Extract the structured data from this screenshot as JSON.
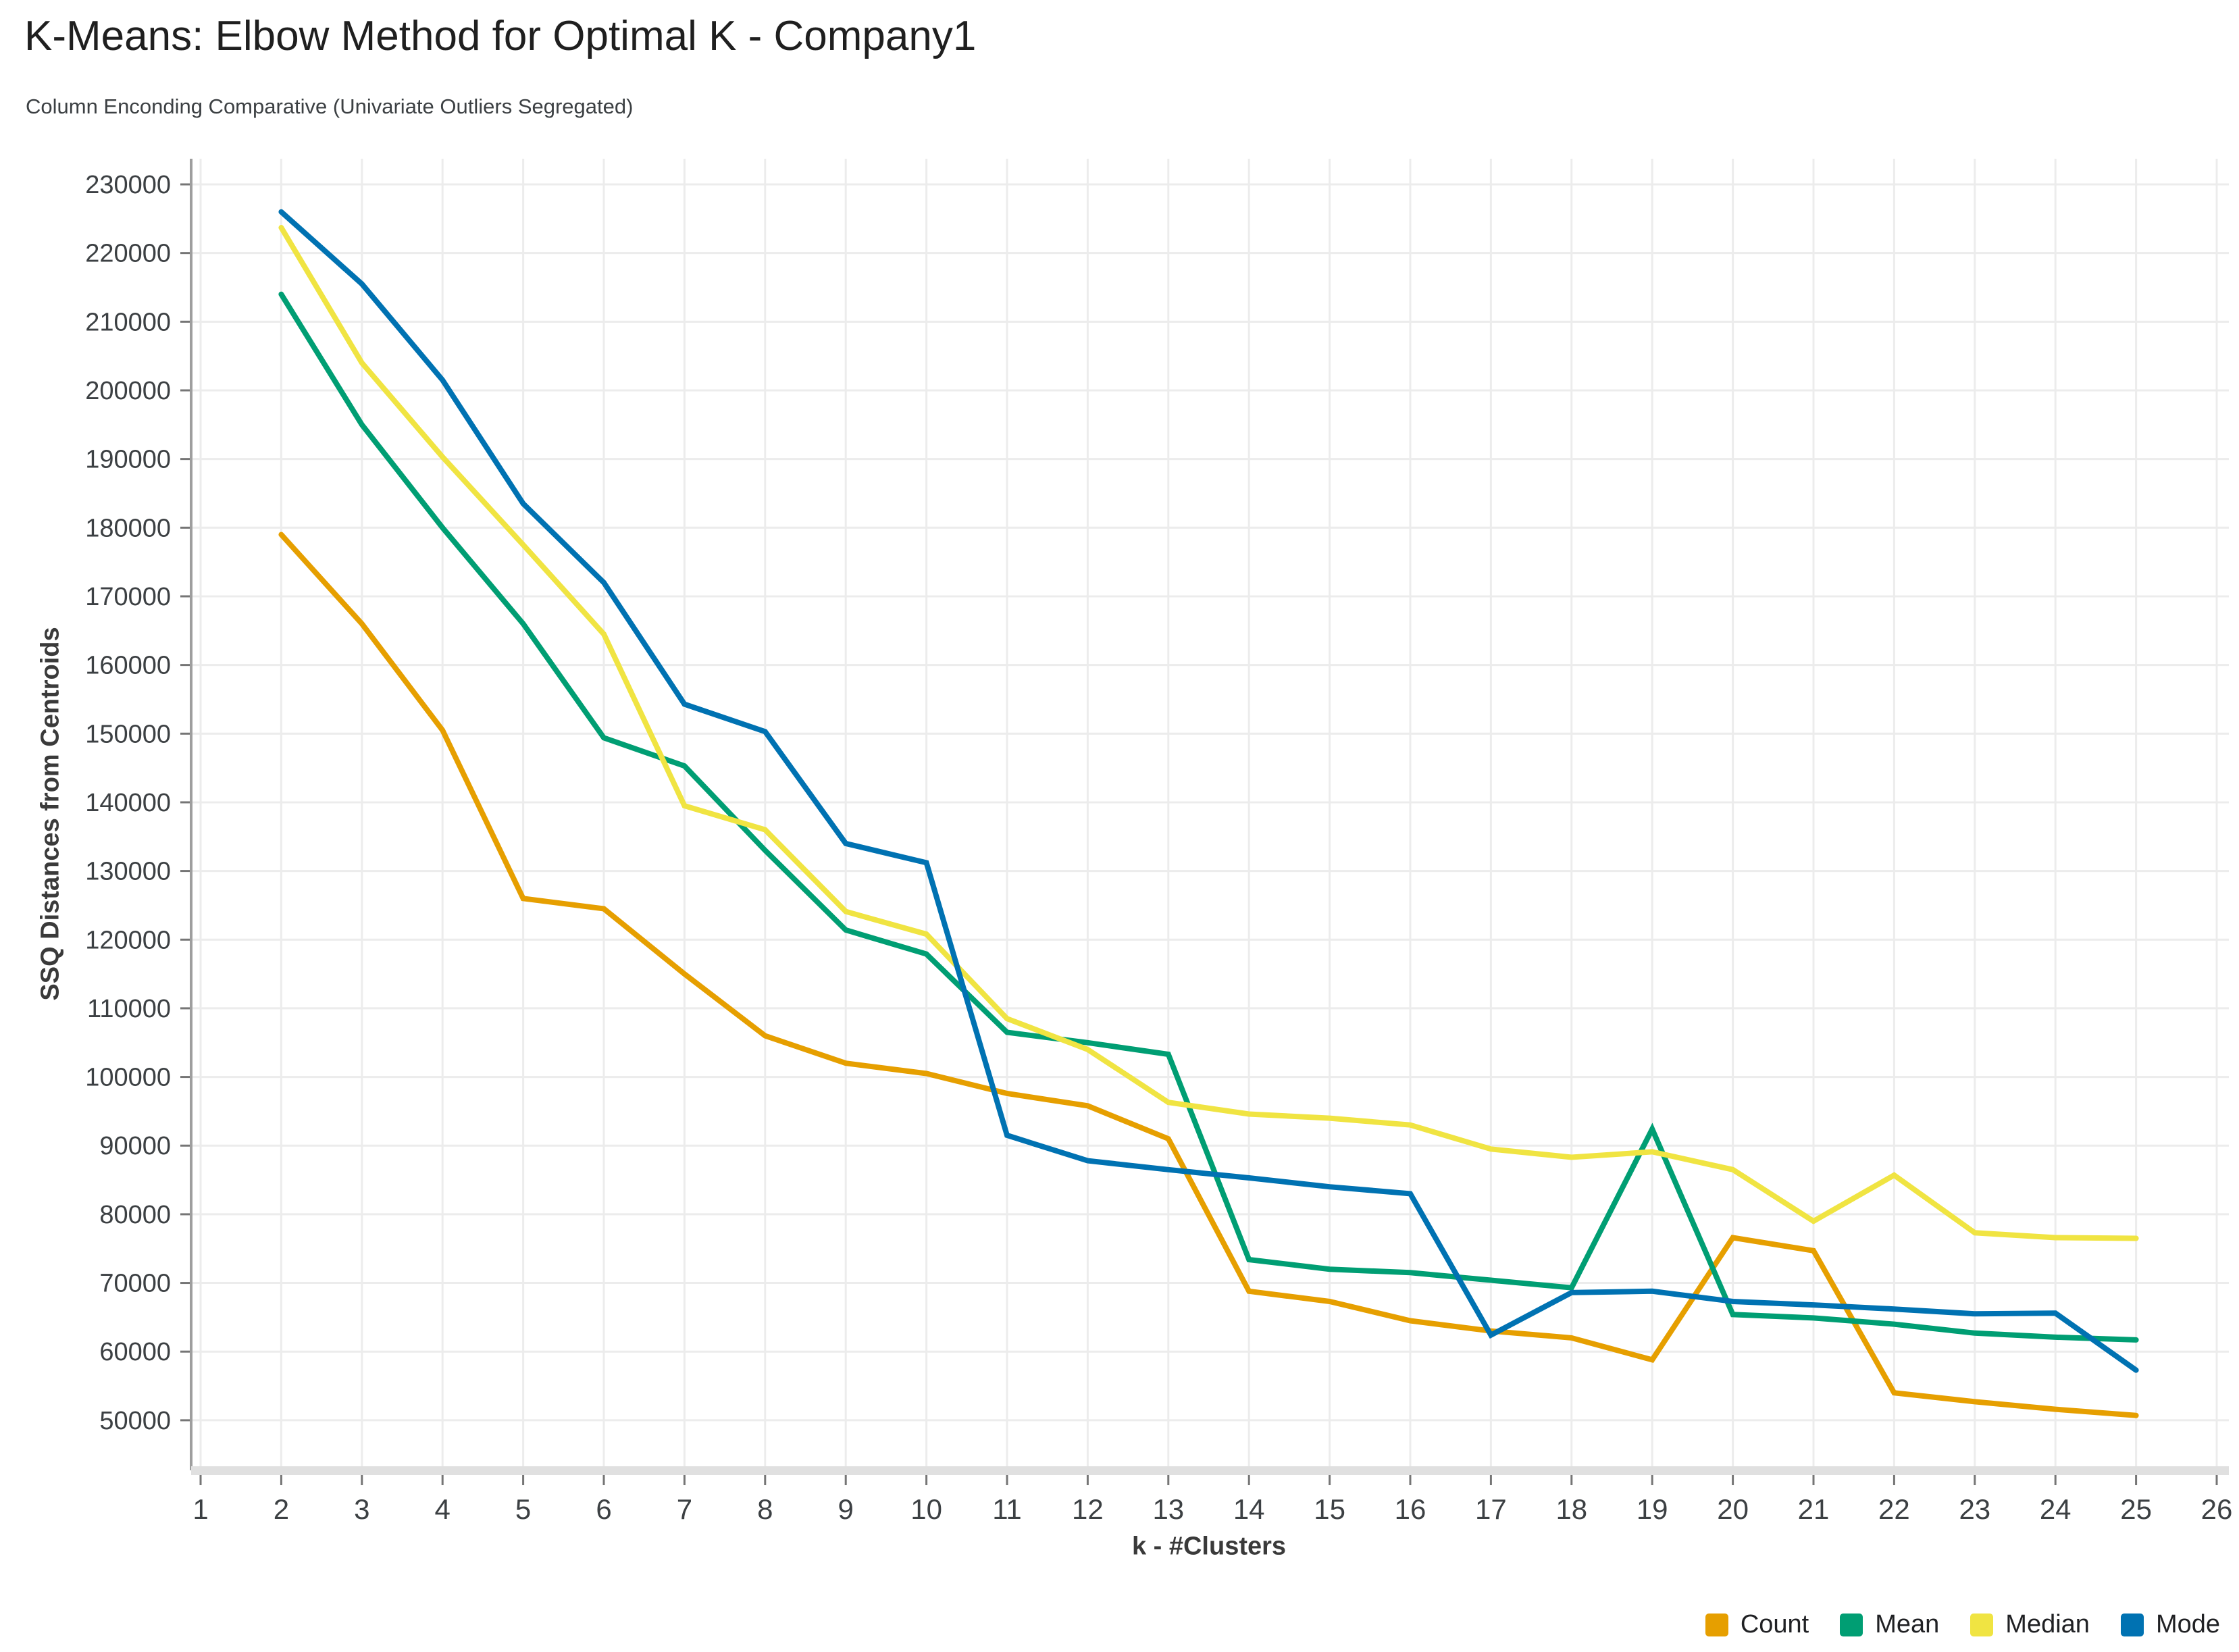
{
  "header": {
    "title": "K-Means: Elbow Method for Optimal K - Company1",
    "subtitle": "Column Enconding Comparative (Univariate Outliers Segregated)"
  },
  "chart_data": {
    "type": "line",
    "title": "K-Means: Elbow Method for Optimal K - Company1",
    "subtitle": "Column Enconding Comparative (Univariate Outliers Segregated)",
    "xlabel": "k - #Clusters",
    "ylabel": "SSQ Distances from Centroids",
    "x": [
      2,
      3,
      4,
      5,
      6,
      7,
      8,
      9,
      10,
      11,
      12,
      13,
      14,
      15,
      16,
      17,
      18,
      19,
      20,
      21,
      22,
      23,
      24,
      25
    ],
    "x_axis_ticks": [
      1,
      2,
      3,
      4,
      5,
      6,
      7,
      8,
      9,
      10,
      11,
      12,
      13,
      14,
      15,
      16,
      17,
      18,
      19,
      20,
      21,
      22,
      23,
      24,
      25,
      26
    ],
    "y_ticks": [
      50000,
      60000,
      70000,
      80000,
      90000,
      100000,
      110000,
      120000,
      130000,
      140000,
      150000,
      160000,
      170000,
      180000,
      190000,
      200000,
      210000,
      220000,
      230000
    ],
    "ylim": [
      42700,
      233700
    ],
    "xlim": [
      1,
      26
    ],
    "grid": true,
    "legend_position": "bottom-right",
    "series": [
      {
        "name": "Count",
        "color": "#E69F00",
        "values": [
          179000,
          166000,
          150500,
          126000,
          124500,
          115000,
          106000,
          102000,
          100500,
          97600,
          95800,
          91000,
          68800,
          67300,
          64500,
          63000,
          62000,
          58800,
          76600,
          74700,
          54000,
          52700,
          51600,
          50700
        ]
      },
      {
        "name": "Mean",
        "color": "#009E73",
        "values": [
          214000,
          195000,
          180000,
          166000,
          149400,
          145300,
          133000,
          121400,
          117900,
          106500,
          105000,
          103300,
          73400,
          72000,
          71500,
          70400,
          69300,
          92400,
          65400,
          64900,
          64000,
          62700,
          62100,
          61700
        ]
      },
      {
        "name": "Median",
        "color": "#F0E442",
        "values": [
          223700,
          204000,
          190300,
          177500,
          164500,
          139500,
          136000,
          124100,
          120800,
          108500,
          104000,
          96300,
          94600,
          94000,
          93000,
          89500,
          88300,
          89100,
          86500,
          79000,
          85700,
          77300,
          76600,
          76500
        ]
      },
      {
        "name": "Mode",
        "color": "#0072B2",
        "values": [
          226000,
          215500,
          201500,
          183500,
          172000,
          154300,
          150300,
          134000,
          131200,
          91500,
          87800,
          86500,
          85300,
          84000,
          83000,
          62400,
          68600,
          68800,
          67300,
          66800,
          66200,
          65500,
          65600,
          57300
        ]
      }
    ]
  },
  "colors": {
    "gridline": "#ececec",
    "axis_line": "#9e9e9e",
    "baseline_band": "#e0e0e0",
    "tick": "#757575",
    "tick_label": "#3c4043"
  }
}
